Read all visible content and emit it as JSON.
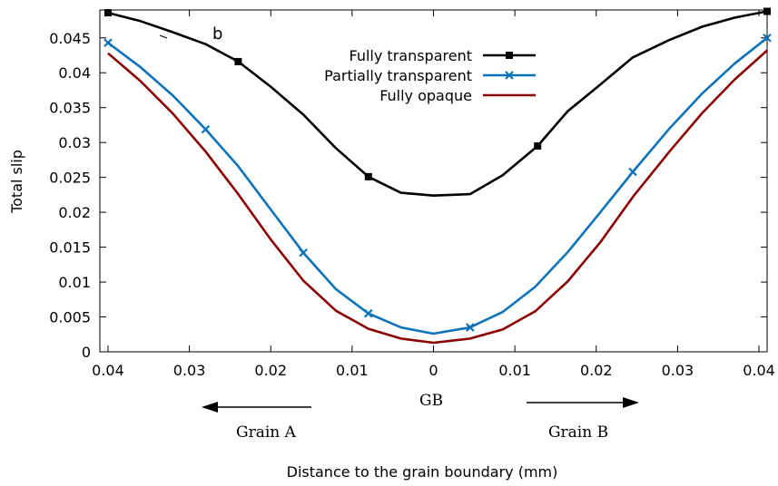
{
  "chart_data": {
    "type": "line",
    "panel_label": "b",
    "xlabel": "Distance to the grain boundary (mm)",
    "ylabel": "Total slip",
    "xlim": [
      -0.041,
      0.041
    ],
    "ylim": [
      0,
      0.049
    ],
    "x_ticks": [
      -0.04,
      -0.03,
      -0.02,
      -0.01,
      0,
      0.01,
      0.02,
      0.03,
      0.04
    ],
    "x_tick_labels": [
      "0.04",
      "0.03",
      "0.02",
      "0.01",
      "0",
      "0.01",
      "0.02",
      "0.03",
      "0.04"
    ],
    "y_ticks": [
      0,
      0.005,
      0.01,
      0.015,
      0.02,
      0.025,
      0.03,
      0.035,
      0.04,
      0.045
    ],
    "y_tick_labels": [
      "0",
      "0.005",
      "0.01",
      "0.015",
      "0.02",
      "0.025",
      "0.03",
      "0.035",
      "0.04",
      "0.045"
    ],
    "annotations": {
      "gb": "GB",
      "grain_a": "Grain A",
      "grain_b": "Grain B"
    },
    "legend_position": "top-right",
    "series": [
      {
        "name": "Fully transparent",
        "color": "#000000",
        "marker": "square",
        "x": [
          -0.04,
          -0.036,
          -0.032,
          -0.028,
          -0.024,
          -0.02,
          -0.016,
          -0.012,
          -0.008,
          -0.004,
          0.0,
          0.0045,
          0.0085,
          0.0128,
          0.0165,
          0.0205,
          0.0245,
          0.029,
          0.033,
          0.037,
          0.041
        ],
        "y": [
          0.0486,
          0.0474,
          0.0458,
          0.0441,
          0.0416,
          0.038,
          0.034,
          0.0292,
          0.0251,
          0.0228,
          0.0224,
          0.0226,
          0.0253,
          0.0295,
          0.0345,
          0.0383,
          0.0422,
          0.0447,
          0.0466,
          0.0479,
          0.0488
        ],
        "marker_x": [
          -0.04,
          -0.024,
          -0.008,
          0.0128,
          0.041
        ],
        "marker_y": [
          0.0486,
          0.0416,
          0.0251,
          0.0295,
          0.0488
        ]
      },
      {
        "name": "Partially transparent",
        "color": "#0c72ba",
        "marker": "cross",
        "x": [
          -0.04,
          -0.036,
          -0.032,
          -0.028,
          -0.024,
          -0.02,
          -0.016,
          -0.012,
          -0.008,
          -0.004,
          0.0,
          0.0045,
          0.0085,
          0.0125,
          0.0165,
          0.0205,
          0.0245,
          0.029,
          0.033,
          0.037,
          0.041
        ],
        "y": [
          0.0443,
          0.0408,
          0.0367,
          0.0319,
          0.0266,
          0.0204,
          0.0142,
          0.009,
          0.0055,
          0.0035,
          0.0026,
          0.0035,
          0.0057,
          0.0093,
          0.0143,
          0.02,
          0.0258,
          0.032,
          0.037,
          0.0413,
          0.045
        ],
        "marker_x": [
          -0.04,
          -0.028,
          -0.016,
          -0.008,
          0.0045,
          0.0245,
          0.041
        ],
        "marker_y": [
          0.0443,
          0.0319,
          0.0142,
          0.0055,
          0.0035,
          0.0258,
          0.045
        ]
      },
      {
        "name": "Fully opaque",
        "color": "#8b0000",
        "marker": "none",
        "x": [
          -0.04,
          -0.036,
          -0.032,
          -0.028,
          -0.024,
          -0.02,
          -0.016,
          -0.012,
          -0.008,
          -0.004,
          0.0,
          0.0045,
          0.0085,
          0.0125,
          0.0165,
          0.0205,
          0.0245,
          0.029,
          0.033,
          0.037,
          0.041
        ],
        "y": [
          0.0428,
          0.0388,
          0.0341,
          0.0287,
          0.0226,
          0.0161,
          0.0102,
          0.0059,
          0.0033,
          0.0019,
          0.0013,
          0.0019,
          0.0032,
          0.0058,
          0.0101,
          0.0157,
          0.0222,
          0.0287,
          0.0342,
          0.039,
          0.0432
        ]
      }
    ]
  }
}
